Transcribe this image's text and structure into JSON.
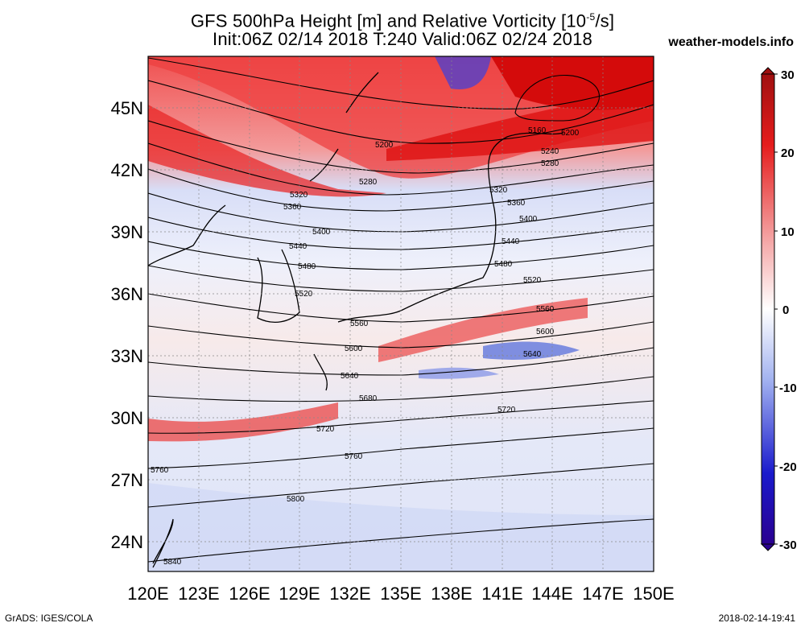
{
  "title_main": "GFS 500hPa Height [m] and Relative Vorticity [10",
  "title_exp": "-5",
  "title_unit": "/s]",
  "title_line2": "Init:06Z 02/14 2018 T:240 Valid:06Z 02/24 2018",
  "site": "weather-models.info",
  "footer_left": "GrADS: IGES/COLA",
  "footer_right": "2018-02-14-19:41",
  "map": {
    "lon_ticks": [
      "120E",
      "123E",
      "126E",
      "129E",
      "132E",
      "135E",
      "138E",
      "141E",
      "144E",
      "147E",
      "150E"
    ],
    "lat_ticks": [
      "45N",
      "42N",
      "39N",
      "36N",
      "33N",
      "30N",
      "27N",
      "24N"
    ],
    "lon_range": [
      120,
      150
    ],
    "lat_range": [
      22.5,
      47.5
    ]
  },
  "colorbar": {
    "labels": [
      "30",
      "20",
      "10",
      "0",
      "-10",
      "-20",
      "-30"
    ],
    "values": [
      30,
      20,
      10,
      0,
      -10,
      -20,
      -30
    ],
    "color_top": "#b22222",
    "color_mid": "#ffffff",
    "color_bottom": "#2a00a0"
  },
  "contour_labels": [
    "5160",
    "5200",
    "5200",
    "5240",
    "5280",
    "5280",
    "5320",
    "5320",
    "5360",
    "5360",
    "5400",
    "5400",
    "5440",
    "5440",
    "5480",
    "5480",
    "5520",
    "5520",
    "5560",
    "5560",
    "5600",
    "5600",
    "5640",
    "5640",
    "5680",
    "5720",
    "5720",
    "5760",
    "5760",
    "5800",
    "5840"
  ]
}
